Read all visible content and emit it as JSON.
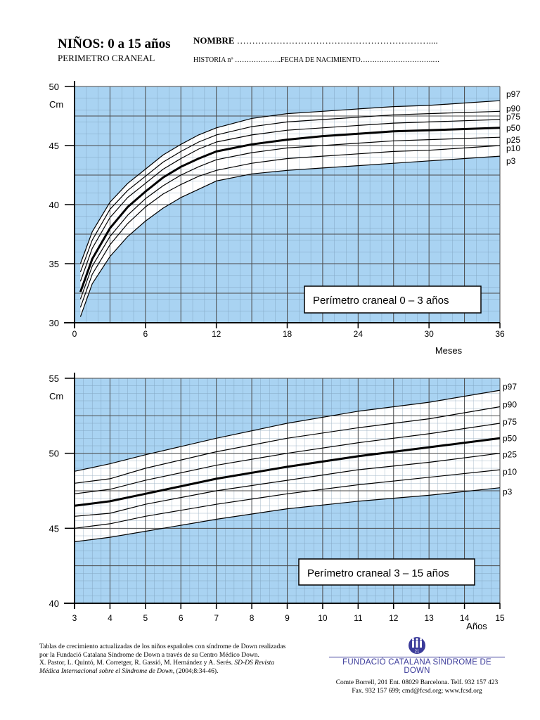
{
  "header": {
    "title": "NIÑOS: 0 a 15 años",
    "subtitle": "PERIMETRO CRANEAL",
    "nombre_label": "NOMBRE",
    "nombre_dots": "………………………………………………………....",
    "historia": "HISTORIA nº ………………..FECHA DE NACIMIENTO………………………….…"
  },
  "footer": {
    "ref_line1": "Tablas de crecimiento actualizadas de los niños españoles con síndrome de Down realizadas por la Fundació Catalana Síndrome de Down a través de su Centro Médico Down.",
    "ref_line2": "X. Pastor, L. Quintó, M. Corretger, R. Gassió, M. Hernández y A. Serés.",
    "ref_line3": "SD-DS Revista Médica Internacional sobre el Síndrome de Down,",
    "ref_line4": "(2004;8:34-46).",
    "org_name": "FUNDACIÓ CATALANA SÍNDROME DE DOWN",
    "logo_text": "21",
    "address": "Comte Borrell, 201 Ent. 08029 Barcelona. Telf. 932 157 423",
    "contact": "Fax. 932 157 699; cmd@fcsd.org; www.fcsd.org"
  },
  "colors": {
    "plot_bg": "#a9d3f2",
    "band_bg": "#ffffff",
    "grid": "#4a4a4a",
    "curve": "#000000"
  },
  "chart_data": [
    {
      "type": "line",
      "title": "Perímetro craneal  0 – 3 años",
      "xlabel": "Meses",
      "ylabel": "Cm",
      "xlim": [
        0,
        36
      ],
      "ylim": [
        30,
        50
      ],
      "xticks": [
        0,
        6,
        12,
        18,
        24,
        30,
        36
      ],
      "yticks": [
        30,
        35,
        40,
        45,
        50
      ],
      "grid": true,
      "x": [
        0.5,
        1.5,
        3,
        4.5,
        6,
        7.5,
        9,
        10.5,
        12,
        15,
        18,
        21,
        24,
        27,
        30,
        33,
        36
      ],
      "series": [
        {
          "name": "p97",
          "bold": false,
          "values": [
            35,
            37.7,
            40.2,
            41.8,
            43,
            44.2,
            45.1,
            45.9,
            46.5,
            47.3,
            47.7,
            47.9,
            48.1,
            48.3,
            48.4,
            48.6,
            48.8
          ]
        },
        {
          "name": "p90",
          "bold": false,
          "values": [
            34.3,
            37,
            39.6,
            41.2,
            42.4,
            43.6,
            44.5,
            45.3,
            45.9,
            46.6,
            47,
            47.2,
            47.4,
            47.6,
            47.7,
            47.8,
            47.9
          ]
        },
        {
          "name": "p75",
          "bold": false,
          "values": [
            33.5,
            36.3,
            38.9,
            40.6,
            41.8,
            43,
            43.9,
            44.7,
            45.3,
            45.9,
            46.3,
            46.5,
            46.7,
            46.9,
            47,
            47.1,
            47.2
          ]
        },
        {
          "name": "p50",
          "bold": true,
          "values": [
            32.6,
            35.4,
            38,
            39.8,
            41.1,
            42.3,
            43.2,
            43.9,
            44.5,
            45.1,
            45.5,
            45.8,
            46,
            46.2,
            46.3,
            46.4,
            46.5
          ]
        },
        {
          "name": "p25",
          "bold": false,
          "values": [
            32,
            34.8,
            37.3,
            39.1,
            40.5,
            41.6,
            42.5,
            43.2,
            43.8,
            44.4,
            44.8,
            45,
            45.2,
            45.4,
            45.5,
            45.6,
            45.7
          ]
        },
        {
          "name": "p10",
          "bold": false,
          "values": [
            31.3,
            34.1,
            36.6,
            38.4,
            39.8,
            40.9,
            41.7,
            42.4,
            42.9,
            43.5,
            43.9,
            44.1,
            44.3,
            44.5,
            44.6,
            44.8,
            45
          ]
        },
        {
          "name": "p3",
          "bold": false,
          "values": [
            30.5,
            33.3,
            35.6,
            37.3,
            38.6,
            39.7,
            40.6,
            41.3,
            42,
            42.6,
            42.9,
            43.1,
            43.3,
            43.5,
            43.7,
            43.9,
            44.1
          ]
        }
      ]
    },
    {
      "type": "line",
      "title": "Perímetro craneal  3 – 15 años",
      "xlabel": "Años",
      "ylabel": "Cm",
      "xlim": [
        3,
        15
      ],
      "ylim": [
        40,
        55
      ],
      "xticks": [
        3,
        4,
        5,
        6,
        7,
        8,
        9,
        10,
        11,
        12,
        13,
        14,
        15
      ],
      "yticks": [
        40,
        45,
        50,
        55
      ],
      "grid": true,
      "x": [
        3,
        4,
        5,
        7,
        9,
        11,
        13,
        15
      ],
      "series": [
        {
          "name": "p97",
          "bold": false,
          "values": [
            48.8,
            49.3,
            49.9,
            51,
            52,
            52.8,
            53.4,
            54.2
          ]
        },
        {
          "name": "p90",
          "bold": false,
          "values": [
            48,
            48.3,
            49,
            50.1,
            51,
            51.7,
            52.3,
            53.1
          ]
        },
        {
          "name": "p75",
          "bold": false,
          "values": [
            47.3,
            47.6,
            48.2,
            49.2,
            50,
            50.7,
            51.3,
            52
          ]
        },
        {
          "name": "p50",
          "bold": true,
          "values": [
            46.5,
            46.8,
            47.3,
            48.3,
            49.1,
            49.8,
            50.4,
            51
          ]
        },
        {
          "name": "p25",
          "bold": false,
          "values": [
            45.8,
            46,
            46.6,
            47.5,
            48.2,
            48.9,
            49.4,
            50
          ]
        },
        {
          "name": "p10",
          "bold": false,
          "values": [
            45,
            45.3,
            45.8,
            46.6,
            47.3,
            47.9,
            48.4,
            48.9
          ]
        },
        {
          "name": "p3",
          "bold": false,
          "values": [
            44.1,
            44.4,
            44.8,
            45.6,
            46.3,
            46.8,
            47.2,
            47.7
          ]
        }
      ]
    }
  ]
}
